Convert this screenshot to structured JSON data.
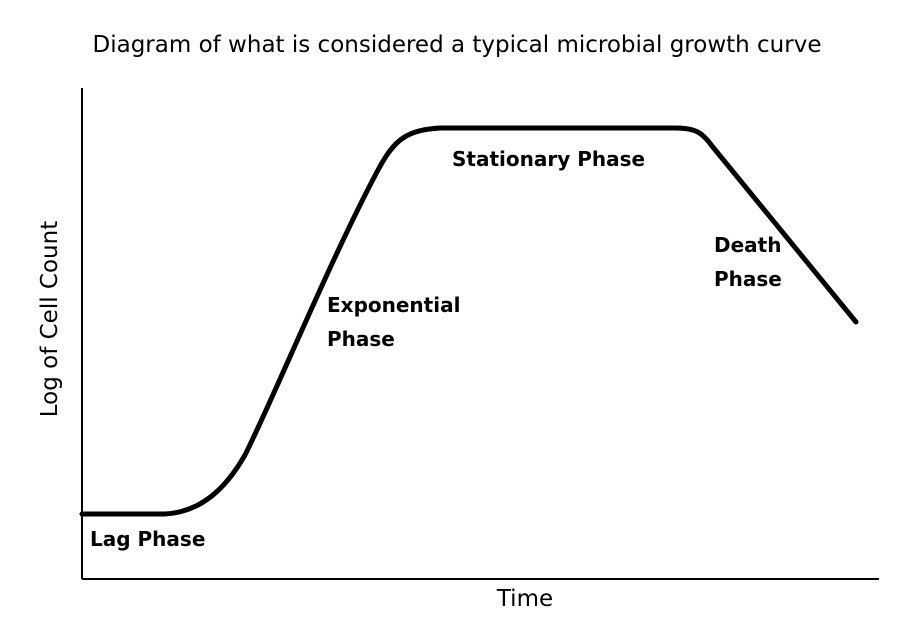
{
  "title": "Diagram of what is considered a typical microbial growth curve",
  "xlabel": "Time",
  "ylabel": "Log of Cell Count",
  "phases": {
    "lag": "Lag Phase",
    "exponential": [
      "Exponential",
      "Phase"
    ],
    "stationary": "Stationary Phase",
    "death": [
      "Death",
      "Phase"
    ]
  },
  "colors": {
    "curve": "#000000",
    "axes": "#000000",
    "background": "#ffffff"
  }
}
